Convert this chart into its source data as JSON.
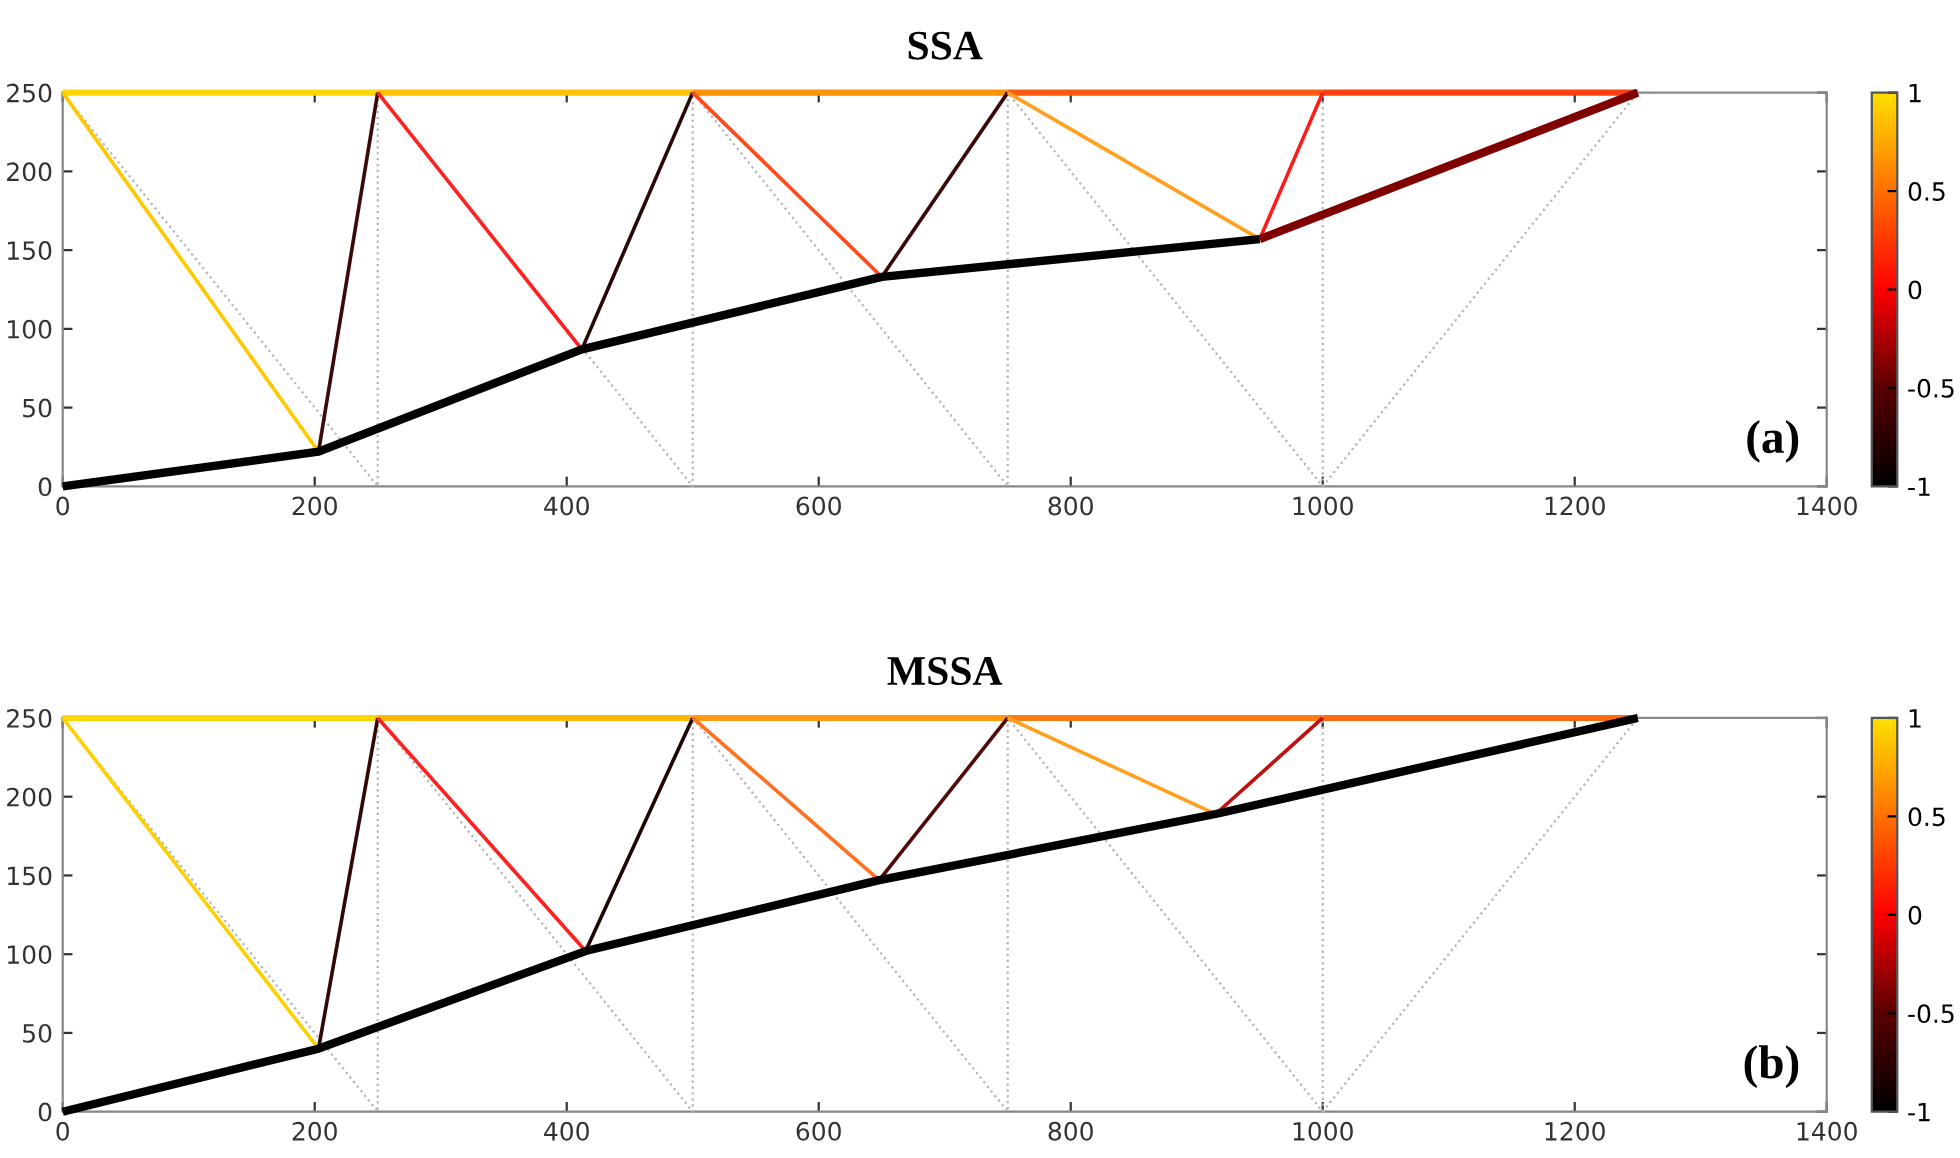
{
  "chart_data": [
    {
      "type": "line",
      "title": "SSA",
      "annotations": [
        "(a)"
      ],
      "xlim": [
        0,
        1400
      ],
      "xticks": [
        0,
        200,
        400,
        600,
        800,
        1000,
        1200,
        1400
      ],
      "ylim": [
        0,
        250
      ],
      "yticks": [
        0,
        50,
        100,
        150,
        200,
        250
      ],
      "clim": [
        -1,
        1
      ],
      "cticks": [
        -1,
        -0.5,
        0,
        0.5,
        1
      ],
      "grid": false,
      "legend": false,
      "series": [
        {
          "color": "#b4b4b4",
          "line_style": "dotted",
          "x": [
            0,
            250,
            250,
            500,
            500,
            750,
            750,
            1000,
            1250
          ],
          "values": [
            250,
            0,
            250,
            0,
            250,
            0,
            250,
            0,
            250
          ]
        },
        {
          "color": "#b4b4b4",
          "line_style": "dotted",
          "x": [
            1000,
            1000
          ],
          "values": [
            0,
            250
          ]
        },
        {
          "color": "#ffd700",
          "x": [
            0,
            250
          ],
          "values": [
            250,
            250
          ]
        },
        {
          "color": "#ffc400",
          "x": [
            250,
            500
          ],
          "values": [
            250,
            250
          ]
        },
        {
          "color": "#ff9000",
          "x": [
            500,
            750
          ],
          "values": [
            250,
            250
          ]
        },
        {
          "color": "#ff5a10",
          "x": [
            750,
            1000
          ],
          "values": [
            250,
            250
          ]
        },
        {
          "color": "#ff4010",
          "x": [
            1000,
            1250
          ],
          "values": [
            250,
            250
          ]
        },
        {
          "color": "#ffc800",
          "x": [
            0,
            203
          ],
          "values": [
            250,
            22
          ]
        },
        {
          "color": "#3a0a0a",
          "x": [
            203,
            250
          ],
          "values": [
            22,
            250
          ]
        },
        {
          "color": "#ff2020",
          "x": [
            250,
            412
          ],
          "values": [
            250,
            87
          ]
        },
        {
          "color": "#2a0808",
          "x": [
            412,
            500
          ],
          "values": [
            87,
            250
          ]
        },
        {
          "color": "#ff4a1a",
          "x": [
            500,
            650
          ],
          "values": [
            250,
            133
          ]
        },
        {
          "color": "#3a0a0a",
          "x": [
            650,
            750
          ],
          "values": [
            133,
            250
          ]
        },
        {
          "color": "#ffa020",
          "x": [
            750,
            950
          ],
          "values": [
            250,
            157
          ]
        },
        {
          "color": "#ff1a1a",
          "x": [
            950,
            1000
          ],
          "values": [
            157,
            250
          ]
        },
        {
          "color": "#000000",
          "x": [
            0,
            203,
            412,
            650,
            950
          ],
          "values": [
            0,
            22,
            87,
            133,
            157
          ]
        },
        {
          "color": "#800000",
          "x": [
            950,
            1250
          ],
          "values": [
            157,
            250
          ]
        }
      ]
    },
    {
      "type": "line",
      "title": "MSSA",
      "annotations": [
        "(b)"
      ],
      "xlim": [
        0,
        1400
      ],
      "xticks": [
        0,
        200,
        400,
        600,
        800,
        1000,
        1200,
        1400
      ],
      "ylim": [
        0,
        250
      ],
      "yticks": [
        0,
        50,
        100,
        150,
        200,
        250
      ],
      "clim": [
        -1,
        1
      ],
      "cticks": [
        -1,
        -0.5,
        0,
        0.5,
        1
      ],
      "grid": false,
      "legend": false,
      "series": [
        {
          "color": "#b4b4b4",
          "line_style": "dotted",
          "x": [
            0,
            250,
            250,
            500,
            500,
            750,
            750,
            1000,
            1250
          ],
          "values": [
            250,
            0,
            250,
            0,
            250,
            0,
            250,
            0,
            250
          ]
        },
        {
          "color": "#b4b4b4",
          "line_style": "dotted",
          "x": [
            1000,
            1000
          ],
          "values": [
            0,
            250
          ]
        },
        {
          "color": "#ffd700",
          "x": [
            0,
            250
          ],
          "values": [
            250,
            250
          ]
        },
        {
          "color": "#ffb800",
          "x": [
            250,
            500
          ],
          "values": [
            250,
            250
          ]
        },
        {
          "color": "#ff9a10",
          "x": [
            500,
            750
          ],
          "values": [
            250,
            250
          ]
        },
        {
          "color": "#ff7a10",
          "x": [
            750,
            1000
          ],
          "values": [
            250,
            250
          ]
        },
        {
          "color": "#ff6a10",
          "x": [
            1000,
            1250
          ],
          "values": [
            250,
            250
          ]
        },
        {
          "color": "#ffd000",
          "x": [
            0,
            203
          ],
          "values": [
            250,
            40
          ]
        },
        {
          "color": "#300808",
          "x": [
            203,
            250
          ],
          "values": [
            40,
            250
          ]
        },
        {
          "color": "#ff2020",
          "x": [
            250,
            415
          ],
          "values": [
            250,
            102
          ]
        },
        {
          "color": "#200505",
          "x": [
            415,
            500
          ],
          "values": [
            102,
            250
          ]
        },
        {
          "color": "#ff7020",
          "x": [
            500,
            648
          ],
          "values": [
            250,
            147
          ]
        },
        {
          "color": "#500a0a",
          "x": [
            648,
            750
          ],
          "values": [
            147,
            250
          ]
        },
        {
          "color": "#ffa020",
          "x": [
            750,
            915
          ],
          "values": [
            250,
            189
          ]
        },
        {
          "color": "#c01010",
          "x": [
            915,
            1000
          ],
          "values": [
            189,
            250
          ]
        },
        {
          "color": "#000000",
          "x": [
            0,
            203,
            415,
            648,
            915,
            1250
          ],
          "values": [
            0,
            40,
            102,
            147,
            189,
            250
          ]
        }
      ]
    }
  ]
}
